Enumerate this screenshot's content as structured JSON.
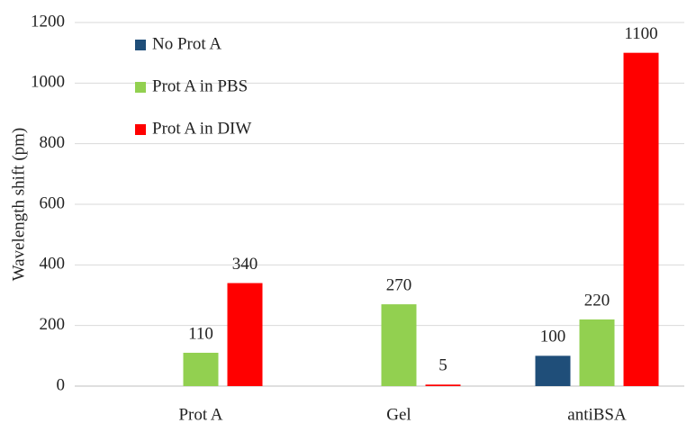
{
  "chart_data": {
    "type": "bar",
    "y_label": "Wavelength shift (pm)",
    "categories": [
      "Prot A",
      "Gel",
      "antiBSA"
    ],
    "series": [
      {
        "name": "No Prot A",
        "color": "#1f4e79",
        "values": [
          null,
          null,
          100
        ]
      },
      {
        "name": "Prot A in PBS",
        "color": "#92d050",
        "values": [
          110,
          270,
          220
        ]
      },
      {
        "name": "Prot A in DIW",
        "color": "#ff0000",
        "values": [
          340,
          5,
          1100
        ]
      }
    ],
    "ylim": [
      0,
      1200
    ],
    "yticks": [
      0,
      200,
      400,
      600,
      800,
      1000,
      1200
    ],
    "grid": true,
    "legend": "upper left"
  }
}
